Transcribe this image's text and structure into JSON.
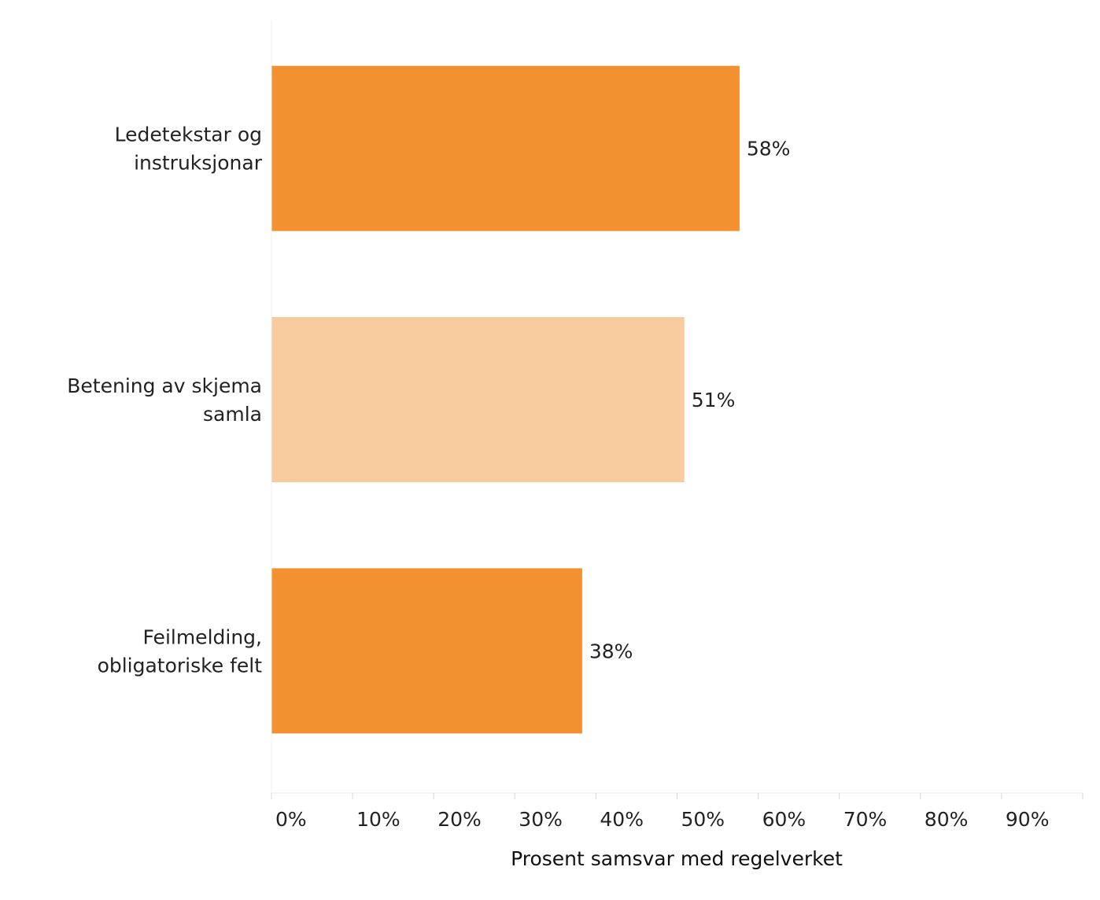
{
  "chart_data": {
    "type": "bar",
    "orientation": "horizontal",
    "categories": [
      [
        "Ledetekstar og",
        "instruksjonar"
      ],
      [
        "Betening av skjema",
        "samla"
      ],
      [
        "Feilmelding,",
        "obligatoriske felt"
      ]
    ],
    "values": [
      57.7,
      50.9,
      38.3
    ],
    "value_labels": [
      "58%",
      "51%",
      "38%"
    ],
    "bar_colors": [
      "#f39130",
      "#f8cc9f",
      "#f39130"
    ],
    "xlabel": "Prosent samsvar med regelverket",
    "ylabel": "",
    "xlim": [
      0,
      100
    ],
    "x_ticks": [
      0,
      10,
      20,
      30,
      40,
      50,
      60,
      70,
      80,
      90
    ],
    "x_tick_labels": [
      "0%",
      "10%",
      "20%",
      "30%",
      "40%",
      "50%",
      "60%",
      "70%",
      "80%",
      "90%"
    ],
    "grid": false,
    "legend": "none"
  }
}
